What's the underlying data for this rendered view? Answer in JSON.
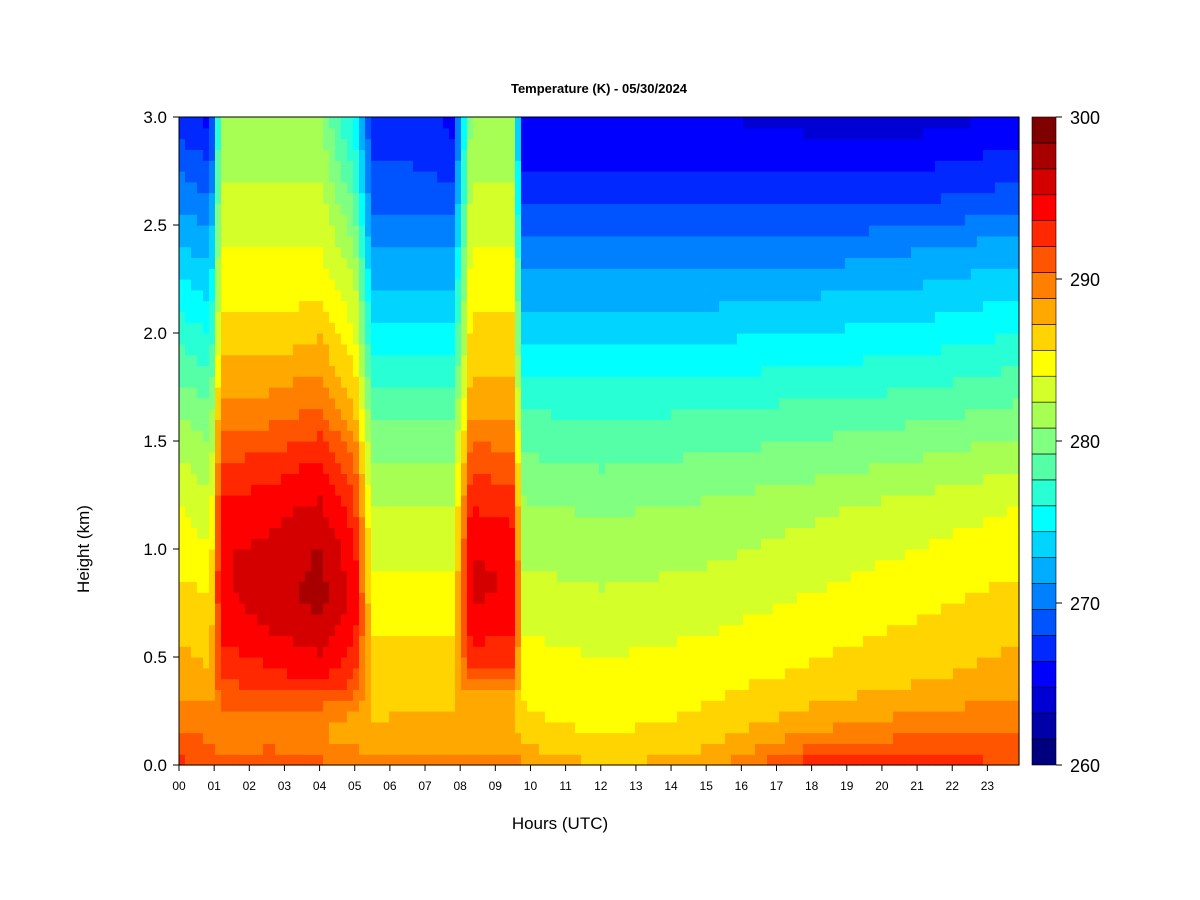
{
  "chart_data": {
    "type": "heatmap",
    "title": "Temperature (K) - 05/30/2024",
    "xlabel": "Hours (UTC)",
    "ylabel": "Height (km)",
    "x_ticks": [
      "00",
      "01",
      "02",
      "03",
      "04",
      "05",
      "06",
      "07",
      "08",
      "09",
      "10",
      "11",
      "12",
      "13",
      "14",
      "15",
      "16",
      "17",
      "18",
      "19",
      "20",
      "21",
      "22",
      "23"
    ],
    "x_range": [
      0,
      23.9
    ],
    "y_ticks": [
      "0.0",
      "0.5",
      "1.0",
      "1.5",
      "2.0",
      "2.5",
      "3.0"
    ],
    "y_tick_values": [
      0,
      0.5,
      1.0,
      1.5,
      2.0,
      2.5,
      3.0
    ],
    "y_range": [
      0,
      3.0
    ],
    "colorbar": {
      "range": [
        260,
        300
      ],
      "step": 2,
      "tick_labels": [
        "260",
        "270",
        "280",
        "290",
        "300"
      ],
      "tick_values": [
        260,
        270,
        280,
        290,
        300
      ],
      "colors": [
        "#00007f",
        "#0000a8",
        "#0000d4",
        "#0000ff",
        "#0028ff",
        "#0054ff",
        "#0080ff",
        "#00acff",
        "#00d4ff",
        "#00ffff",
        "#28ffd4",
        "#54ffa8",
        "#80ff80",
        "#a8ff54",
        "#d4ff28",
        "#ffff00",
        "#ffd400",
        "#ffa800",
        "#ff8000",
        "#ff5400",
        "#ff2800",
        "#ff0000",
        "#d40000",
        "#a80000",
        "#7f0000"
      ]
    },
    "heights_km": [
      0,
      0.1,
      0.2,
      0.3,
      0.4,
      0.5,
      0.6,
      0.7,
      0.8,
      0.9,
      1.0,
      1.2,
      1.4,
      1.6,
      1.8,
      2.0,
      2.2,
      2.4,
      2.6,
      2.8,
      3.0
    ],
    "profiles": [
      {
        "hour": 0.0,
        "temps_K": [
          292.5,
          291,
          290,
          289,
          288,
          287.5,
          287,
          286.5,
          286,
          285.5,
          285,
          284,
          282.5,
          281,
          279,
          277,
          275,
          273,
          271,
          269,
          267
        ]
      },
      {
        "hour": 0.9,
        "temps_K": [
          292,
          290.5,
          289.5,
          288.5,
          287.5,
          287,
          286.5,
          286,
          285.5,
          285,
          284,
          283,
          281.5,
          280,
          278,
          276,
          274,
          272,
          270,
          268,
          266
        ]
      },
      {
        "hour": 1.2,
        "temps_K": [
          291,
          289,
          289,
          291,
          292,
          293,
          294,
          294.5,
          295,
          295,
          295,
          294,
          292,
          290,
          288,
          286,
          285,
          284,
          283,
          282,
          281
        ]
      },
      {
        "hour": 2.5,
        "temps_K": [
          292,
          290,
          289,
          291,
          293,
          294,
          295,
          295.5,
          296,
          296,
          295.5,
          294.5,
          292.5,
          290,
          288,
          286,
          285,
          284,
          283,
          282,
          281
        ]
      },
      {
        "hour": 4.0,
        "temps_K": [
          291,
          289,
          289,
          291,
          294,
          295,
          296,
          297,
          297.5,
          297,
          297,
          295.5,
          294,
          291,
          289,
          287,
          285,
          284,
          283,
          282,
          281
        ]
      },
      {
        "hour": 5.0,
        "temps_K": [
          290,
          288.5,
          288,
          290,
          292,
          293,
          294,
          294.5,
          294.5,
          294.5,
          294,
          292.5,
          290.5,
          288,
          286,
          284,
          283,
          281,
          279,
          277,
          275
        ]
      },
      {
        "hour": 5.5,
        "temps_K": [
          290,
          288,
          287,
          287,
          286.5,
          286,
          285.5,
          285,
          284.5,
          284,
          283.5,
          282.5,
          281,
          279,
          277,
          275,
          273,
          271,
          269,
          268,
          267
        ]
      },
      {
        "hour": 6.5,
        "temps_K": [
          290,
          288,
          287.5,
          287,
          286.5,
          286,
          285.5,
          285,
          284.5,
          284,
          283.5,
          282.5,
          281,
          279,
          277,
          275,
          273,
          271,
          269,
          268,
          267
        ]
      },
      {
        "hour": 7.8,
        "temps_K": [
          290,
          288,
          287.5,
          287,
          286.5,
          286,
          285.5,
          285,
          284.5,
          284,
          283.5,
          282.5,
          281,
          279,
          277,
          275,
          273,
          271,
          269,
          267,
          266
        ]
      },
      {
        "hour": 8.3,
        "temps_K": [
          290,
          288,
          287,
          288,
          291,
          293,
          294,
          295,
          295.5,
          295.5,
          295,
          293.5,
          291.5,
          289,
          287,
          286,
          285,
          284,
          283,
          282,
          281
        ]
      },
      {
        "hour": 9.5,
        "temps_K": [
          290,
          288,
          287,
          288,
          290.5,
          292.5,
          293.5,
          294.5,
          295,
          295,
          294.5,
          293,
          291,
          289,
          287,
          286,
          285,
          284,
          283,
          282,
          281
        ]
      },
      {
        "hour": 9.8,
        "temps_K": [
          289,
          287,
          286,
          285.5,
          285,
          284.5,
          284,
          283.5,
          283,
          282.5,
          282,
          281,
          279.5,
          278,
          276,
          274,
          272,
          270,
          268,
          266,
          265
        ]
      },
      {
        "hour": 12.0,
        "temps_K": [
          287,
          286,
          285,
          284.5,
          284,
          284,
          283.5,
          283,
          282.5,
          282,
          281.5,
          280.5,
          279,
          277.5,
          276,
          274,
          272,
          270,
          268,
          266,
          265
        ]
      },
      {
        "hour": 15.0,
        "temps_K": [
          288,
          287,
          286,
          285.5,
          285,
          284.5,
          284,
          283.5,
          283,
          282.5,
          282,
          281,
          279.5,
          278,
          276,
          274,
          272,
          270,
          268,
          266,
          265
        ]
      },
      {
        "hour": 18.0,
        "temps_K": [
          293,
          290,
          288,
          287,
          286,
          285.5,
          285,
          284.5,
          284,
          283.5,
          283,
          282,
          280,
          278.5,
          276.5,
          274.5,
          272.5,
          270,
          268,
          266,
          264
        ]
      },
      {
        "hour": 21.0,
        "temps_K": [
          293,
          291,
          289.5,
          288,
          287,
          286.5,
          286,
          285.5,
          285,
          284.5,
          284,
          283,
          281,
          279,
          277,
          275,
          273,
          271,
          268,
          266,
          264
        ]
      },
      {
        "hour": 23.9,
        "temps_K": [
          292,
          291,
          290,
          289,
          288,
          287.5,
          287,
          286.5,
          286,
          285.5,
          285,
          284,
          282,
          280,
          278,
          276,
          274,
          272,
          269,
          267,
          265
        ]
      }
    ]
  }
}
